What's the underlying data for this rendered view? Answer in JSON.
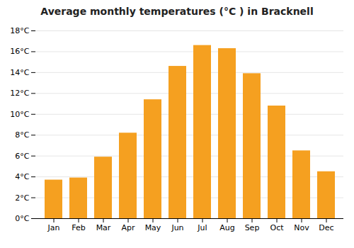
{
  "chart_data": {
    "type": "bar",
    "title": "Average monthly temperatures (°C ) in Bracknell",
    "categories": [
      "Jan",
      "Feb",
      "Mar",
      "Apr",
      "May",
      "Jun",
      "Jul",
      "Aug",
      "Sep",
      "Oct",
      "Nov",
      "Dec"
    ],
    "values": [
      3.7,
      3.9,
      5.9,
      8.2,
      11.4,
      14.6,
      16.6,
      16.3,
      13.9,
      10.8,
      6.5,
      4.5
    ],
    "color": "#F5A020",
    "ylim": [
      0,
      18
    ],
    "yticks": [
      {
        "value": 0,
        "label": "0°C"
      },
      {
        "value": 2,
        "label": "2°C"
      },
      {
        "value": 4,
        "label": "4°C"
      },
      {
        "value": 6,
        "label": "6°C"
      },
      {
        "value": 8,
        "label": "8°C"
      },
      {
        "value": 10,
        "label": "10°C"
      },
      {
        "value": 12,
        "label": "12°C"
      },
      {
        "value": 14,
        "label": "14°C"
      },
      {
        "value": 16,
        "label": "16°C"
      },
      {
        "value": 18,
        "label": "18°C"
      }
    ],
    "grid": true
  }
}
